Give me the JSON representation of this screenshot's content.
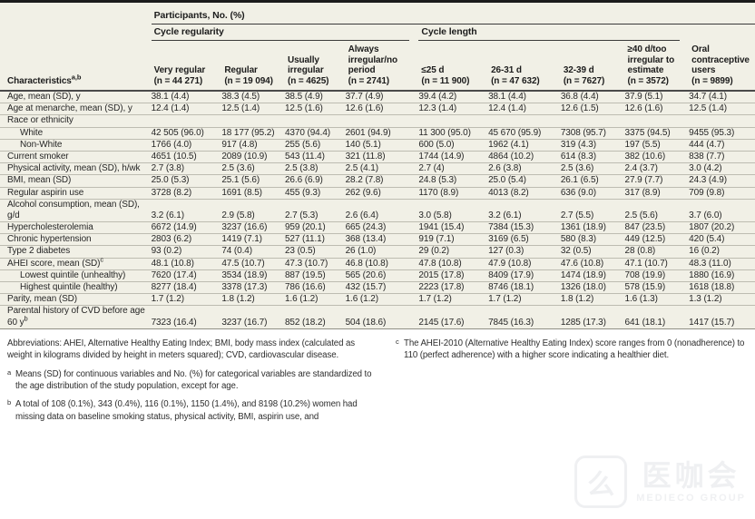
{
  "table": {
    "top_header": "Participants, No. (%)",
    "group_cycle_regularity": "Cycle regularity",
    "group_cycle_length": "Cycle length",
    "characteristics": {
      "text": "Characteristics",
      "sup": "a,b"
    },
    "columns": [
      {
        "label": "Very regular",
        "n": "(n = 44 271)"
      },
      {
        "label": "Regular",
        "n": "(n = 19 094)"
      },
      {
        "label": "Usually irregular",
        "n": "(n = 4625)"
      },
      {
        "label": "Always irregular/no period",
        "n": "(n = 2741)"
      },
      {
        "label": "≤25 d",
        "n": "(n = 11 900)"
      },
      {
        "label": "26-31 d",
        "n": "(n = 47 632)"
      },
      {
        "label": "32-39 d",
        "n": "(n = 7627)"
      },
      {
        "label": "≥40 d/too irregular to estimate",
        "n": "(n = 3572)"
      },
      {
        "label": "Oral contraceptive users",
        "n": "(n = 9899)"
      }
    ],
    "rows": [
      {
        "label": "Age, mean (SD), y",
        "values": [
          "38.1 (4.4)",
          "38.3 (4.5)",
          "38.5 (4.9)",
          "37.7 (4.9)",
          "39.4 (4.2)",
          "38.1 (4.4)",
          "36.8 (4.4)",
          "37.9 (5.1)",
          "34.7 (4.1)"
        ]
      },
      {
        "label": "Age at menarche, mean (SD), y",
        "values": [
          "12.4 (1.4)",
          "12.5 (1.4)",
          "12.5 (1.6)",
          "12.6 (1.6)",
          "12.3 (1.4)",
          "12.4 (1.4)",
          "12.6 (1.5)",
          "12.6 (1.6)",
          "12.5 (1.4)"
        ]
      },
      {
        "label": "Race or ethnicity",
        "section": true,
        "values": []
      },
      {
        "label": "White",
        "indent": true,
        "values": [
          "42 505 (96.0)",
          "18 177 (95.2)",
          "4370 (94.4)",
          "2601 (94.9)",
          "11 300 (95.0)",
          "45 670 (95.9)",
          "7308 (95.7)",
          "3375 (94.5)",
          "9455 (95.3)"
        ]
      },
      {
        "label": "Non-White",
        "indent": true,
        "values": [
          "1766 (4.0)",
          "917 (4.8)",
          "255 (5.6)",
          "140 (5.1)",
          "600 (5.0)",
          "1962 (4.1)",
          "319 (4.3)",
          "197 (5.5)",
          "444 (4.7)"
        ]
      },
      {
        "label": "Current smoker",
        "values": [
          "4651 (10.5)",
          "2089 (10.9)",
          "543 (11.4)",
          "321 (11.8)",
          "1744 (14.9)",
          "4864 (10.2)",
          "614 (8.3)",
          "382 (10.6)",
          "838 (7.7)"
        ]
      },
      {
        "label": "Physical activity, mean (SD), h/wk",
        "values": [
          "2.7 (3.8)",
          "2.5 (3.6)",
          "2.5 (3.8)",
          "2.5 (4.1)",
          "2.7 (4)",
          "2.6 (3.8)",
          "2.5 (3.6)",
          "2.4 (3.7)",
          "3.0 (4.2)"
        ]
      },
      {
        "label": "BMI, mean (SD)",
        "values": [
          "25.0 (5.3)",
          "25.1 (5.6)",
          "26.6 (6.9)",
          "28.2 (7.8)",
          "24.8 (5.3)",
          "25.0 (5.4)",
          "26.1 (6.5)",
          "27.9 (7.7)",
          "24.3 (4.9)"
        ]
      },
      {
        "label": "Regular aspirin use",
        "values": [
          "3728 (8.2)",
          "1691 (8.5)",
          "455 (9.3)",
          "262 (9.6)",
          "1170 (8.9)",
          "4013 (8.2)",
          "636 (9.0)",
          "317 (8.9)",
          "709 (9.8)"
        ]
      },
      {
        "label": "Alcohol consumption, mean (SD), g/d",
        "values": [
          "3.2 (6.1)",
          "2.9 (5.8)",
          "2.7 (5.3)",
          "2.6 (6.4)",
          "3.0 (5.8)",
          "3.2 (6.1)",
          "2.7 (5.5)",
          "2.5 (5.6)",
          "3.7 (6.0)"
        ]
      },
      {
        "label": "Hypercholesterolemia",
        "values": [
          "6672 (14.9)",
          "3237 (16.6)",
          "959 (20.1)",
          "665 (24.3)",
          "1941 (15.4)",
          "7384 (15.3)",
          "1361 (18.9)",
          "847 (23.5)",
          "1807 (20.2)"
        ]
      },
      {
        "label": "Chronic hypertension",
        "values": [
          "2803 (6.2)",
          "1419 (7.1)",
          "527 (11.1)",
          "368 (13.4)",
          "919 (7.1)",
          "3169 (6.5)",
          "580 (8.3)",
          "449 (12.5)",
          "420 (5.4)"
        ]
      },
      {
        "label": "Type 2 diabetes",
        "values": [
          "93 (0.2)",
          "74 (0.4)",
          "23 (0.5)",
          "26 (1.0)",
          "29 (0.2)",
          "127 (0.3)",
          "32 (0.5)",
          "28 (0.8)",
          "16 (0.2)"
        ]
      },
      {
        "label": "AHEI score, mean (SD)",
        "sup": "c",
        "values": [
          "48.1 (10.8)",
          "47.5 (10.7)",
          "47.3 (10.7)",
          "46.8 (10.8)",
          "47.8 (10.8)",
          "47.9 (10.8)",
          "47.6 (10.8)",
          "47.1 (10.7)",
          "48.3 (11.0)"
        ]
      },
      {
        "label": "Lowest quintile (unhealthy)",
        "indent": true,
        "values": [
          "7620 (17.4)",
          "3534 (18.9)",
          "887 (19.5)",
          "565 (20.6)",
          "2015 (17.8)",
          "8409 (17.9)",
          "1474 (18.9)",
          "708 (19.9)",
          "1880 (16.9)"
        ]
      },
      {
        "label": "Highest quintile (healthy)",
        "indent": true,
        "values": [
          "8277 (18.4)",
          "3378 (17.3)",
          "786 (16.6)",
          "432 (15.7)",
          "2223 (17.8)",
          "8746 (18.1)",
          "1326 (18.0)",
          "578 (15.9)",
          "1618 (18.8)"
        ]
      },
      {
        "label": "Parity, mean (SD)",
        "values": [
          "1.7 (1.2)",
          "1.8 (1.2)",
          "1.6 (1.2)",
          "1.6 (1.2)",
          "1.7 (1.2)",
          "1.7 (1.2)",
          "1.8 (1.2)",
          "1.6 (1.3)",
          "1.3 (1.2)"
        ]
      },
      {
        "label": "Parental history of CVD before age 60 y",
        "sup": "b",
        "values": [
          "7323 (16.4)",
          "3237 (16.7)",
          "852 (18.2)",
          "504 (18.6)",
          "2145 (17.6)",
          "7845 (16.3)",
          "1285 (17.3)",
          "641 (18.1)",
          "1417 (15.7)"
        ]
      }
    ]
  },
  "footnotes": {
    "abbreviations": "Abbreviations: AHEI, Alternative Healthy Eating Index; BMI, body mass index (calculated as weight in kilograms divided by height in meters squared); CVD, cardiovascular disease.",
    "a": {
      "marker": "a",
      "text": "Means (SD) for continuous variables and No. (%) for categorical variables are standardized to the age distribution of the study population, except for age."
    },
    "b": {
      "marker": "b",
      "text": "A total of 108 (0.1%), 343 (0.4%), 116 (0.1%), 1150 (1.4%), and 8198 (10.2%) women had missing data on baseline smoking status, physical activity, BMI, aspirin use, and"
    },
    "c": {
      "marker": "c",
      "text": "The AHEI-2010 (Alternative Healthy Eating Index) score ranges from 0 (nonadherence) to 110 (perfect adherence) with a higher score indicating a healthier diet."
    }
  },
  "watermark": {
    "logo_glyph": "么",
    "cn": "医咖会",
    "en": "MEDIECO GROUP"
  },
  "colors": {
    "table_bg": "#f1f0e6",
    "top_border": "#1c1c1c",
    "row_separator": "#bdbcb1",
    "text": "#262626"
  }
}
